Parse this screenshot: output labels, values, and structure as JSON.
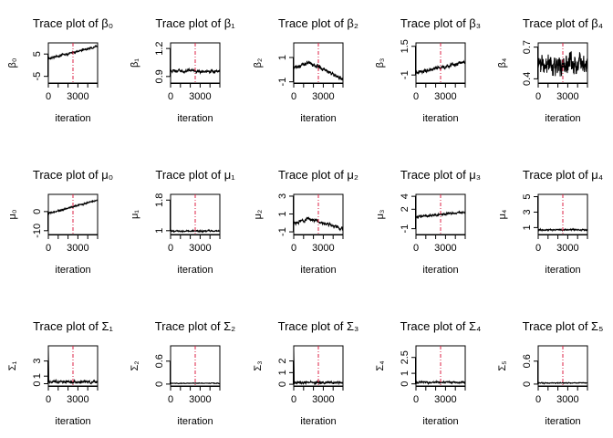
{
  "panels": [
    {
      "title": "Trace plot of  β₀",
      "ylabel": "β₀",
      "xlabel": "iteration",
      "xticks": [
        0,
        3000
      ],
      "yticks": [
        -5,
        5
      ],
      "ylim": [
        -8,
        10
      ],
      "series": [
        {
          "from": 3,
          "to": 8.5,
          "noise": 0.3
        }
      ],
      "vline": 2500
    },
    {
      "title": "Trace plot of  β₁",
      "ylabel": "β₁",
      "xlabel": "iteration",
      "xticks": [
        0,
        3000
      ],
      "yticks": [
        0.9,
        1.2
      ],
      "ylim": [
        0.83,
        1.26
      ],
      "series": [
        {
          "from": 0.96,
          "to": 0.955,
          "noise": 0.012
        }
      ],
      "vline": 2500
    },
    {
      "title": "Trace plot of  β₂",
      "ylabel": "β₂",
      "xlabel": "iteration",
      "xticks": [
        0,
        3000
      ],
      "yticks": [
        -1,
        1
      ],
      "ylim": [
        -1.1,
        2.2
      ],
      "series": [
        {
          "from": 0.1,
          "mid": 0.6,
          "to": -0.8,
          "noise": 0.12
        }
      ],
      "vline": 2500
    },
    {
      "title": "Trace plot of  β₃",
      "ylabel": "β₃",
      "xlabel": "iteration",
      "xticks": [
        0,
        3000
      ],
      "yticks": [
        -1.0,
        1.5
      ],
      "ylim": [
        -1.7,
        1.8
      ],
      "series": [
        {
          "from": -0.8,
          "to": 0.1,
          "noise": 0.12
        }
      ],
      "vline": 2500
    },
    {
      "title": "Trace plot of  β₄",
      "ylabel": "β₄",
      "xlabel": "iteration",
      "xticks": [
        0,
        3000
      ],
      "yticks": [
        0.4,
        0.7
      ],
      "ylim": [
        0.36,
        0.74
      ],
      "series": [
        {
          "from": 0.54,
          "to": 0.54,
          "noise": 0.07
        }
      ],
      "vline": 2500
    },
    {
      "title": "Trace plot of  μ₀",
      "ylabel": "μ₀",
      "xlabel": "iteration",
      "xticks": [
        0,
        3000
      ],
      "yticks": [
        -10,
        0
      ],
      "ylim": [
        -12,
        9
      ],
      "series": [
        {
          "from": -1,
          "to": 6,
          "noise": 0.3
        }
      ],
      "vline": 2500
    },
    {
      "title": "Trace plot of  μ₁",
      "ylabel": "μ₁",
      "xlabel": "iteration",
      "xticks": [
        0,
        3000
      ],
      "yticks": [
        1.0,
        1.8
      ],
      "ylim": [
        0.9,
        1.95
      ],
      "series": [
        {
          "from": 0.99,
          "to": 0.99,
          "noise": 0.012
        }
      ],
      "vline": 2500
    },
    {
      "title": "Trace plot of  μ₂",
      "ylabel": "μ₂",
      "xlabel": "iteration",
      "xticks": [
        0,
        3000
      ],
      "yticks": [
        -1,
        1,
        3
      ],
      "ylim": [
        -1.3,
        3.2
      ],
      "series": [
        {
          "from": -0.1,
          "mid": 0.5,
          "to": -0.7,
          "noise": 0.14
        }
      ],
      "vline": 2500
    },
    {
      "title": "Trace plot of  μ₃",
      "ylabel": "μ₃",
      "xlabel": "iteration",
      "xticks": [
        0,
        3000
      ],
      "yticks": [
        -1,
        2,
        4
      ],
      "ylim": [
        -1.9,
        4.3
      ],
      "series": [
        {
          "from": 0.8,
          "to": 1.6,
          "noise": 0.12
        }
      ],
      "vline": 2500
    },
    {
      "title": "Trace plot of  μ₄",
      "ylabel": "μ₄",
      "xlabel": "iteration",
      "xticks": [
        0,
        3000
      ],
      "yticks": [
        1,
        3,
        5
      ],
      "ylim": [
        0.1,
        5.3
      ],
      "series": [
        {
          "from": 0.7,
          "to": 0.7,
          "noise": 0.06
        }
      ],
      "vline": 2500
    },
    {
      "title": "Trace plot of  Σ₁",
      "ylabel": "Σ₁",
      "xlabel": "iteration",
      "xticks": [
        0,
        3000
      ],
      "yticks": [
        0,
        1,
        3
      ],
      "ylim": [
        -0.3,
        5.0
      ],
      "series": [
        {
          "from": 0.25,
          "to": 0.25,
          "noise": 0.12,
          "spike": 4.6
        }
      ],
      "vline": 2500
    },
    {
      "title": "Trace plot of  Σ₂",
      "ylabel": "Σ₂",
      "xlabel": "iteration",
      "xticks": [
        0,
        3000
      ],
      "yticks": [
        0.0,
        0.6
      ],
      "ylim": [
        -0.05,
        1.0
      ],
      "series": [
        {
          "from": 0.02,
          "to": 0.02,
          "noise": 0.006
        }
      ],
      "vline": 2500
    },
    {
      "title": "Trace plot of  Σ₃",
      "ylabel": "Σ₃",
      "xlabel": "iteration",
      "xticks": [
        0,
        3000
      ],
      "yticks": [
        0.0,
        1.0,
        2.0
      ],
      "ylim": [
        -0.15,
        3.3
      ],
      "series": [
        {
          "from": 0.15,
          "to": 0.15,
          "noise": 0.08,
          "spike": 3.1
        }
      ],
      "vline": 2500
    },
    {
      "title": "Trace plot of  Σ₄",
      "ylabel": "Σ₄",
      "xlabel": "iteration",
      "xticks": [
        0,
        3000
      ],
      "yticks": [
        0.0,
        1.0,
        2.5
      ],
      "ylim": [
        -0.2,
        3.6
      ],
      "series": [
        {
          "from": 0.15,
          "to": 0.15,
          "noise": 0.06,
          "spike": 0.4
        }
      ],
      "vline": 2500
    },
    {
      "title": "Trace plot of  Σ₅",
      "ylabel": "Σ₅",
      "xlabel": "iteration",
      "xticks": [
        0,
        3000
      ],
      "yticks": [
        0.0,
        0.6
      ],
      "ylim": [
        -0.05,
        1.0
      ],
      "series": [
        {
          "from": 0.03,
          "to": 0.03,
          "noise": 0.008
        }
      ],
      "vline": 2500
    }
  ],
  "chart_data": {
    "type": "line",
    "xlim": [
      0,
      5000
    ],
    "n_points": 5000,
    "grid": false,
    "line_color": "#000000",
    "vline_color": "#dd2244"
  }
}
